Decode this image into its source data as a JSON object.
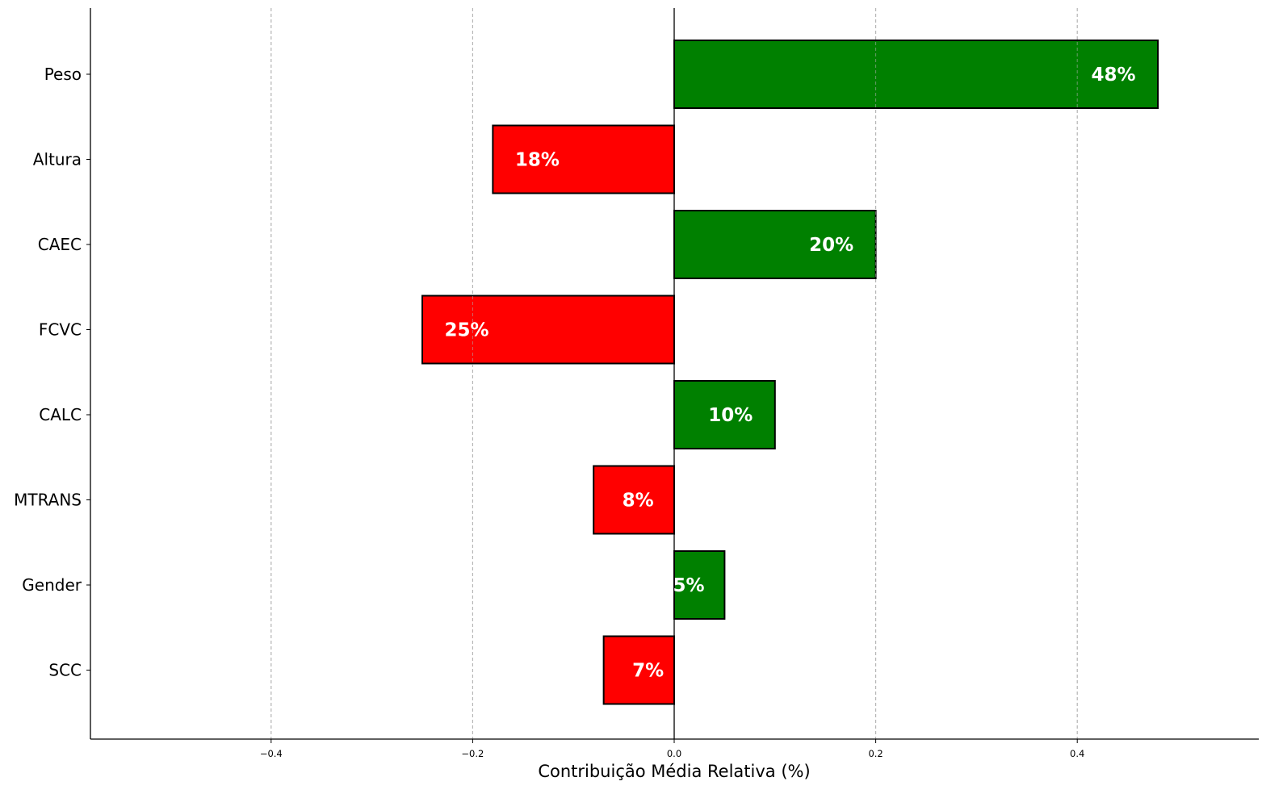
{
  "chart_data": {
    "type": "bar",
    "orientation": "horizontal",
    "title": "",
    "xlabel": "Contribuição Média Relativa (%)",
    "ylabel": "",
    "xlim": [
      -0.58,
      0.58
    ],
    "x_ticks": [
      -0.4,
      -0.2,
      0.0,
      0.2,
      0.4
    ],
    "x_tick_labels": [
      "−0.4",
      "−0.2",
      "0.0",
      "0.2",
      "0.4"
    ],
    "grid": "x, dashed",
    "categories": [
      "Peso",
      "Altura",
      "CAEC",
      "FCVC",
      "CALC",
      "MTRANS",
      "Gender",
      "SCC"
    ],
    "values": [
      0.48,
      -0.18,
      0.2,
      -0.25,
      0.1,
      -0.08,
      0.05,
      -0.07
    ],
    "data_labels": [
      "48%",
      "18%",
      "20%",
      "25%",
      "10%",
      "8%",
      "5%",
      "7%"
    ],
    "colors": {
      "positive": "#008000",
      "negative": "#ff0000",
      "edge": "#000000",
      "label": "#ffffff",
      "grid": "#b0b0b0"
    }
  }
}
